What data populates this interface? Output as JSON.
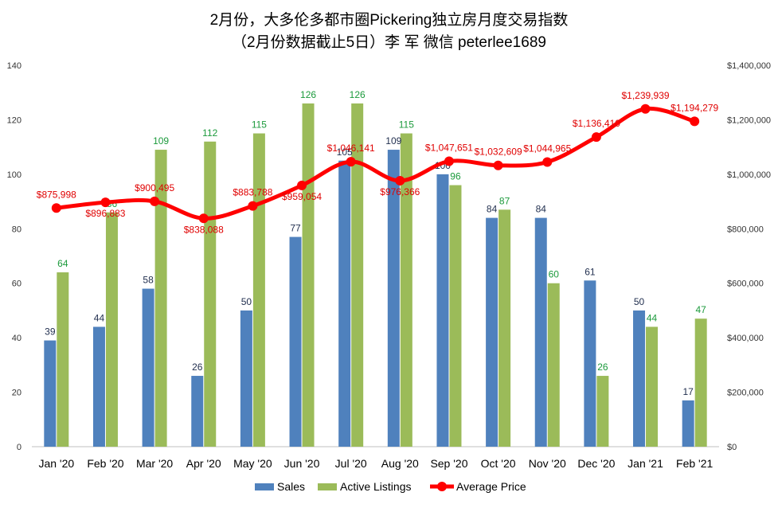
{
  "chart_data": {
    "type": "bar",
    "title_line1": "2月份，大多伦多都市圈Pickering独立房月度交易指数",
    "title_line2": "（2月份数据截止5日）李 军  微信  peterlee1689",
    "categories": [
      "Jan '20",
      "Feb '20",
      "Mar '20",
      "Apr '20",
      "May '20",
      "Jun '20",
      "Jul '20",
      "Aug '20",
      "Sep '20",
      "Oct '20",
      "Nov '20",
      "Dec '20",
      "Jan '21",
      "Feb '21"
    ],
    "series": [
      {
        "name": "Sales",
        "type": "bar",
        "axis": "left",
        "color": "#4f81bd",
        "values": [
          39,
          44,
          58,
          26,
          50,
          77,
          105,
          109,
          100,
          84,
          84,
          61,
          50,
          17
        ]
      },
      {
        "name": "Active Listings",
        "type": "bar",
        "axis": "left",
        "color": "#9bbb59",
        "values": [
          64,
          86,
          109,
          112,
          115,
          126,
          126,
          115,
          96,
          87,
          60,
          26,
          44,
          47
        ]
      },
      {
        "name": "Average Price",
        "type": "line",
        "axis": "right",
        "color": "#ff0000",
        "values": [
          875998,
          896883,
          900495,
          838088,
          883788,
          959054,
          1046141,
          976366,
          1047651,
          1032609,
          1044965,
          1136410,
          1239939,
          1194279
        ],
        "labels": [
          "$875,998",
          "$896,883",
          "$900,495",
          "$838,088",
          "$883,788",
          "$959,054",
          "$1,046,141",
          "$976,366",
          "$1,047,651",
          "$1,032,609",
          "$1,044,965",
          "$1,136,410",
          "$1,239,939",
          "$1,194,279"
        ]
      }
    ],
    "y_left": {
      "min": 0,
      "max": 140,
      "step": 20,
      "ticks": [
        "0",
        "20",
        "40",
        "60",
        "80",
        "100",
        "120",
        "140"
      ]
    },
    "y_right": {
      "min": 0,
      "max": 1400000,
      "step": 200000,
      "ticks": [
        "$0",
        "$200,000",
        "$400,000",
        "$600,000",
        "$800,000",
        "$1,000,000",
        "$1,200,000",
        "$1,400,000"
      ]
    },
    "grid": false,
    "legend_position": "bottom"
  }
}
